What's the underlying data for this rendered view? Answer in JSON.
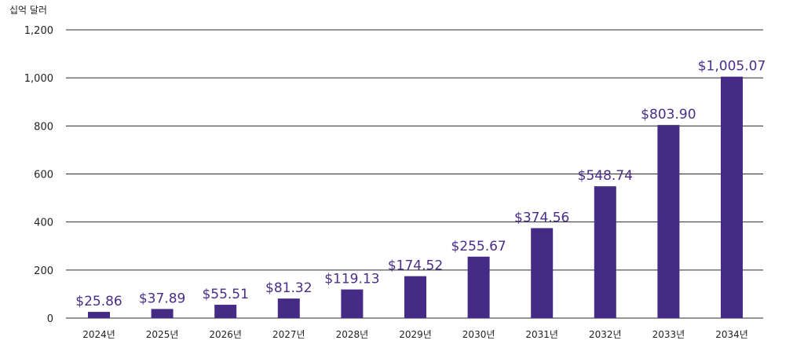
{
  "chart_data": {
    "type": "bar",
    "unit_label": "십억 달러",
    "categories": [
      "2024년",
      "2025년",
      "2026년",
      "2027년",
      "2028년",
      "2029년",
      "2030년",
      "2031년",
      "2032년",
      "2033년",
      "2034년"
    ],
    "values": [
      25.86,
      37.89,
      55.51,
      81.32,
      119.13,
      174.52,
      255.67,
      374.56,
      548.74,
      803.9,
      1005.07
    ],
    "data_labels": [
      "$25.86",
      "$37.89",
      "$55.51",
      "$81.32",
      "$119.13",
      "$174.52",
      "$255.67",
      "$374.56",
      "$548.74",
      "$803.90",
      "$1,005.07"
    ],
    "yticks": [
      0,
      200,
      400,
      600,
      800,
      1000,
      1200
    ],
    "ytick_labels": [
      "0",
      "200",
      "400",
      "600",
      "800",
      "1,000",
      "1,200"
    ],
    "ylim": [
      0,
      1200
    ],
    "grid": true,
    "bar_color": "#452b85",
    "label_color": "#4a2d8a"
  }
}
